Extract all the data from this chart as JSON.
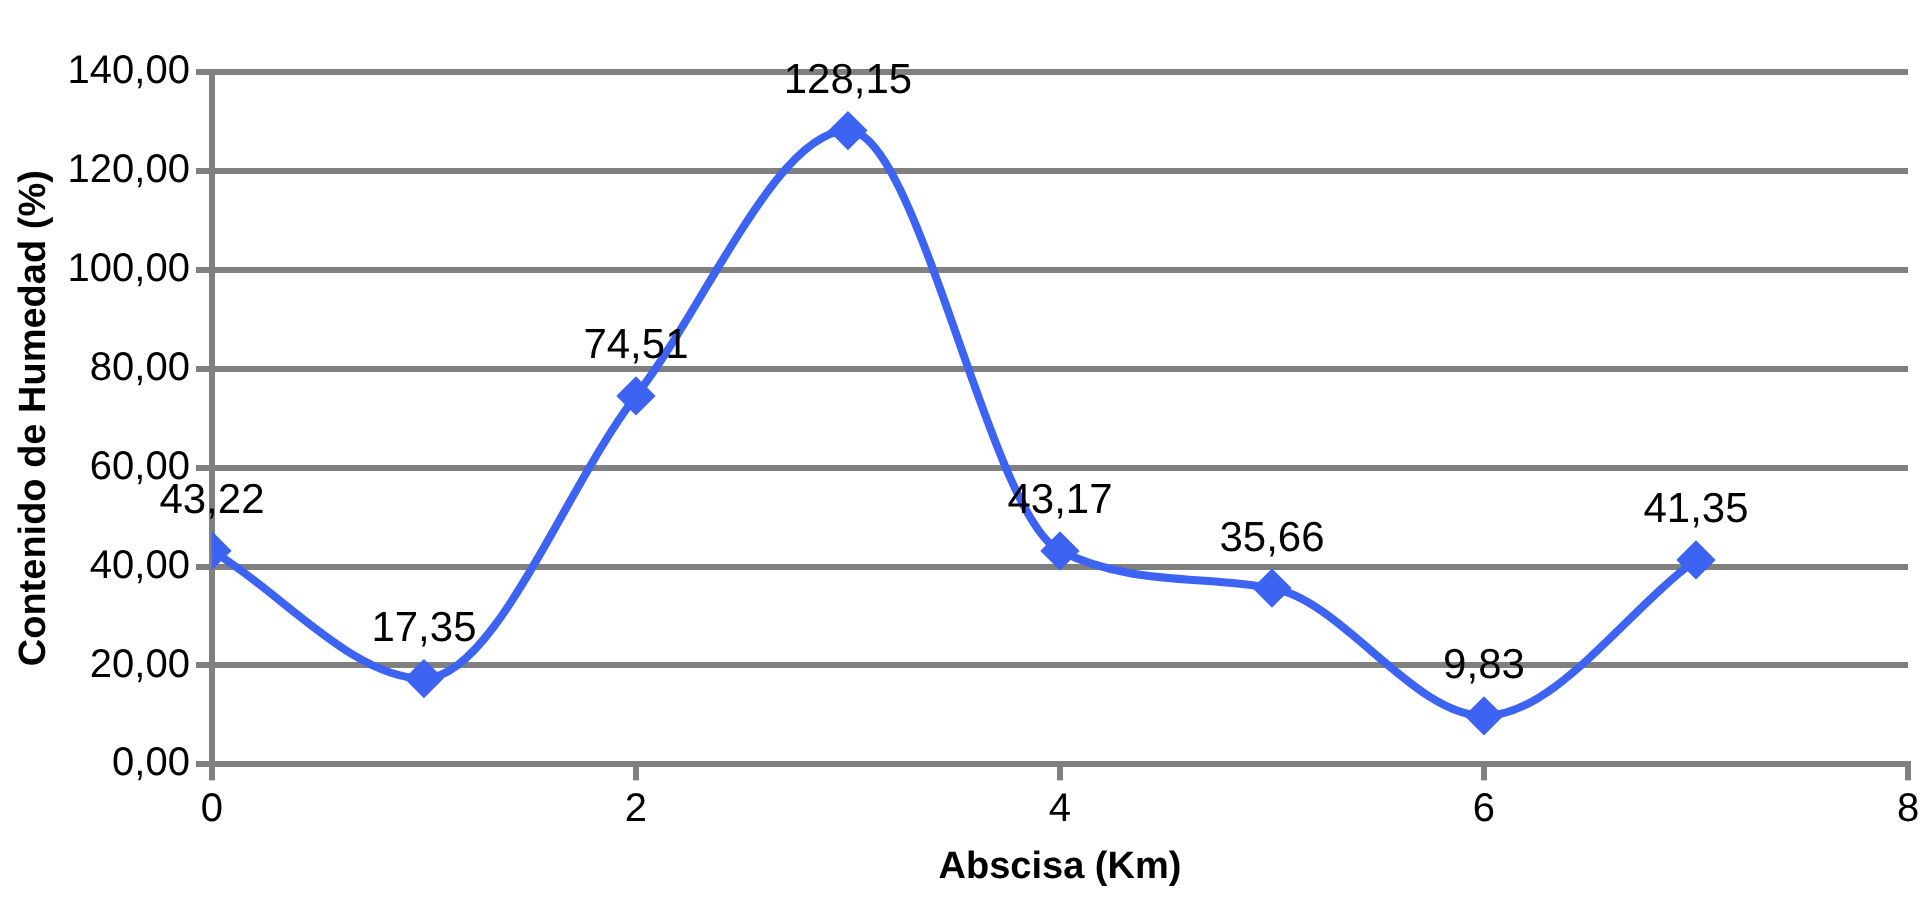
{
  "chart_data": {
    "type": "line",
    "xlabel": "Abscisa (Km)",
    "ylabel": "Contenido de Humedad (%)",
    "x": [
      0,
      1,
      2,
      3,
      4,
      5,
      6,
      7
    ],
    "series": [
      {
        "color": "#3d63f2",
        "values": [
          43.22,
          17.35,
          74.51,
          128.15,
          43.17,
          35.66,
          9.83,
          41.35
        ],
        "value_labels": [
          "43,22",
          "17,35",
          "74,51",
          "128,15",
          "43,17",
          "35,66",
          "9,83",
          "41,35"
        ]
      }
    ],
    "xlim": [
      0,
      8
    ],
    "xticks": [
      0,
      2,
      4,
      6,
      8
    ],
    "ylim": [
      0,
      140
    ],
    "yticks": [
      {
        "value": 0,
        "label": "0,00"
      },
      {
        "value": 20,
        "label": "20,00"
      },
      {
        "value": 40,
        "label": "40,00"
      },
      {
        "value": 60,
        "label": "60,00"
      },
      {
        "value": 80,
        "label": "80,00"
      },
      {
        "value": 100,
        "label": "100,00"
      },
      {
        "value": 120,
        "label": "120,00"
      },
      {
        "value": 140,
        "label": "140,00"
      }
    ],
    "grid": "y",
    "legend": false,
    "marker": "diamond",
    "line_style": "solid"
  }
}
